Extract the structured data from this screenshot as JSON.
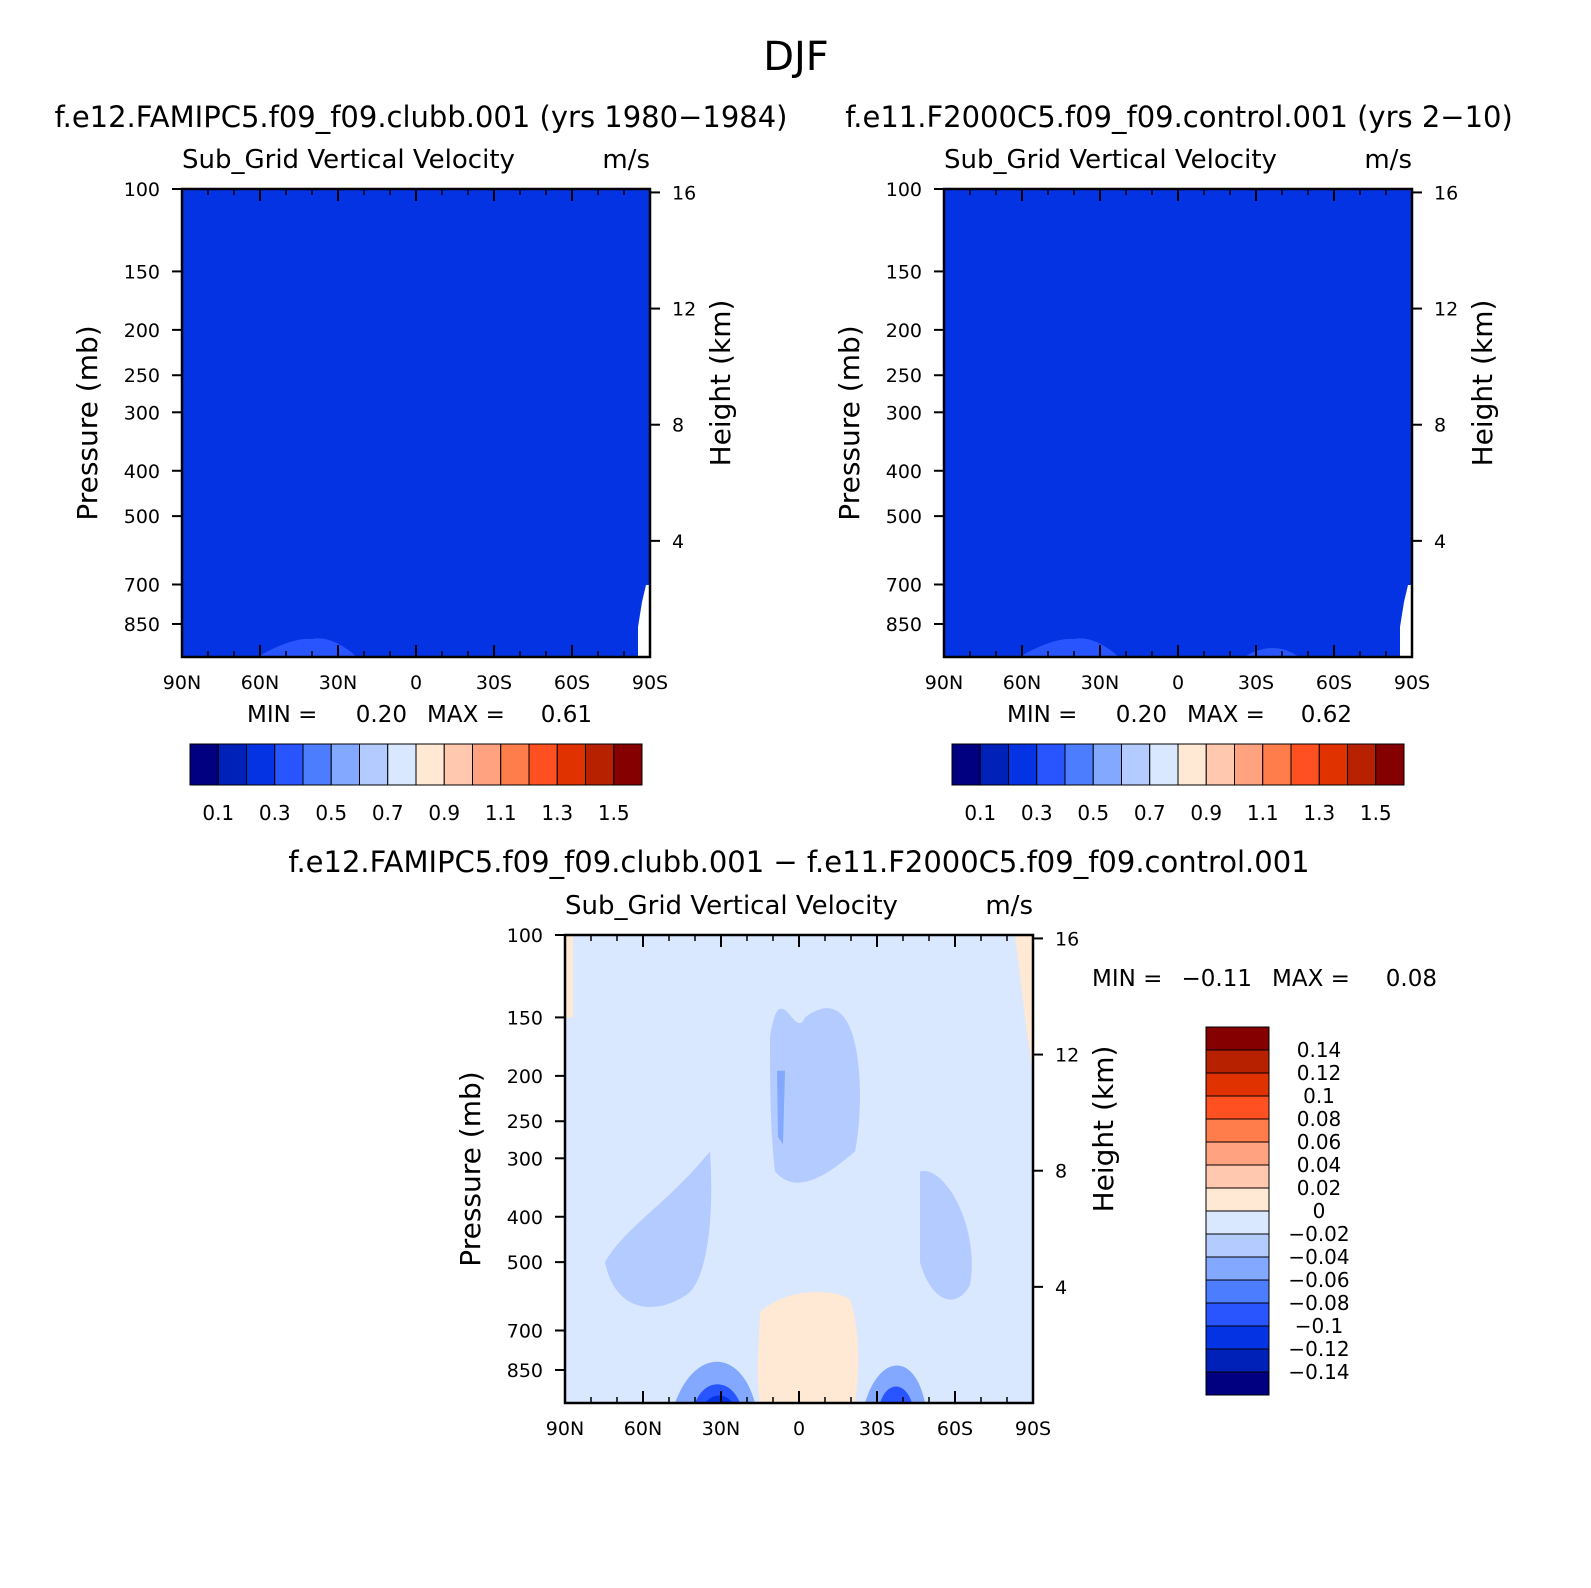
{
  "figure": {
    "title": "DJF",
    "colors": {
      "frame": "#000000",
      "background": "#ffffff"
    }
  },
  "chart_data": [
    {
      "type": "heatmap",
      "title": "f.e12.FAMIPC5.f09_f09.clubb.001 (yrs 1980−1984)",
      "subtitle_left": "Sub_Grid Vertical Velocity",
      "subtitle_right": "m/s",
      "xlabel": "",
      "ylabel": "Pressure (mb)",
      "ylabel_right": "Height (km)",
      "x_ticks": [
        "90N",
        "60N",
        "30N",
        "0",
        "30S",
        "60S",
        "90S"
      ],
      "y_ticks": [
        100,
        150,
        200,
        250,
        300,
        400,
        500,
        700,
        850
      ],
      "y_ticks_right": [
        16,
        12,
        8,
        4
      ],
      "ylim": [
        100,
        1000
      ],
      "y_scale": "log",
      "xlim": [
        90,
        -90
      ],
      "stats_text": [
        "MIN =",
        "0.20",
        "MAX =",
        "0.61"
      ],
      "min": 0.2,
      "max": 0.61,
      "fill_color": "#0433e3",
      "colorbar": {
        "colors": [
          "#000080",
          "#0021b8",
          "#0433e3",
          "#2855ff",
          "#4d7dff",
          "#82a8ff",
          "#b3cbff",
          "#d9e8ff",
          "#ffe8d4",
          "#ffc8af",
          "#ffa27f",
          "#ff7c4b",
          "#ff5022",
          "#e03200",
          "#b82100",
          "#850000"
        ],
        "labels": [
          "0.1",
          "0.3",
          "0.5",
          "0.7",
          "0.9",
          "1.1",
          "1.3",
          "1.5"
        ]
      }
    },
    {
      "type": "heatmap",
      "title": "f.e11.F2000C5.f09_f09.control.001 (yrs 2−10)",
      "subtitle_left": "Sub_Grid Vertical Velocity",
      "subtitle_right": "m/s",
      "xlabel": "",
      "ylabel": "Pressure (mb)",
      "ylabel_right": "Height (km)",
      "x_ticks": [
        "90N",
        "60N",
        "30N",
        "0",
        "30S",
        "60S",
        "90S"
      ],
      "y_ticks": [
        100,
        150,
        200,
        250,
        300,
        400,
        500,
        700,
        850
      ],
      "y_ticks_right": [
        16,
        12,
        8,
        4
      ],
      "ylim": [
        100,
        1000
      ],
      "y_scale": "log",
      "xlim": [
        90,
        -90
      ],
      "stats_text": [
        "MIN =",
        "0.20",
        "MAX =",
        "0.62"
      ],
      "min": 0.2,
      "max": 0.62,
      "fill_color": "#0433e3",
      "colorbar": {
        "colors": [
          "#000080",
          "#0021b8",
          "#0433e3",
          "#2855ff",
          "#4d7dff",
          "#82a8ff",
          "#b3cbff",
          "#d9e8ff",
          "#ffe8d4",
          "#ffc8af",
          "#ffa27f",
          "#ff7c4b",
          "#ff5022",
          "#e03200",
          "#b82100",
          "#850000"
        ],
        "labels": [
          "0.1",
          "0.3",
          "0.5",
          "0.7",
          "0.9",
          "1.1",
          "1.3",
          "1.5"
        ]
      }
    },
    {
      "type": "heatmap",
      "title": "f.e12.FAMIPC5.f09_f09.clubb.001 − f.e11.F2000C5.f09_f09.control.001",
      "subtitle_left": "Sub_Grid Vertical Velocity",
      "subtitle_right": "m/s",
      "xlabel": "",
      "ylabel": "Pressure (mb)",
      "ylabel_right": "Height (km)",
      "x_ticks": [
        "90N",
        "60N",
        "30N",
        "0",
        "30S",
        "60S",
        "90S"
      ],
      "y_ticks": [
        100,
        150,
        200,
        250,
        300,
        400,
        500,
        700,
        850
      ],
      "y_ticks_right": [
        16,
        12,
        8,
        4
      ],
      "ylim": [
        100,
        1000
      ],
      "y_scale": "log",
      "xlim": [
        90,
        -90
      ],
      "stats_text": [
        "MIN =",
        "−0.11",
        "MAX =",
        "0.08"
      ],
      "min": -0.11,
      "max": 0.08,
      "fill_color": "#d9e8ff",
      "colorbar": {
        "colors": [
          "#850000",
          "#b82100",
          "#e03200",
          "#ff5022",
          "#ff7c4b",
          "#ffa27f",
          "#ffc8af",
          "#ffe8d4",
          "#d9e8ff",
          "#b3cbff",
          "#82a8ff",
          "#4d7dff",
          "#2855ff",
          "#0433e3",
          "#0021b8",
          "#000080"
        ],
        "labels": [
          "0.14",
          "0.12",
          "0.1",
          "0.08",
          "0.06",
          "0.04",
          "0.02",
          "0",
          "−0.02",
          "−0.04",
          "−0.06",
          "−0.08",
          "−0.1",
          "−0.12",
          "−0.14"
        ]
      }
    }
  ]
}
